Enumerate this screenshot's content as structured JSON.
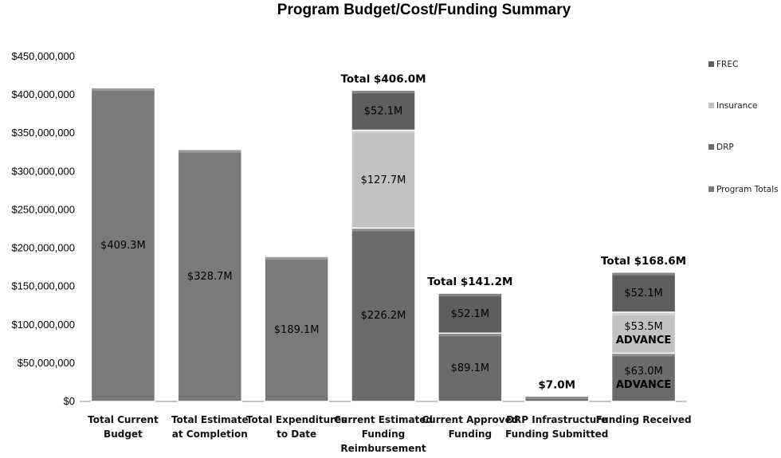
{
  "chart_data": {
    "type": "bar",
    "stacked": true,
    "title": "Program Budget/Cost/Funding Summary",
    "xlabel": "",
    "ylabel": "",
    "ylim": [
      0,
      450000000
    ],
    "ytick_values": [
      0,
      50000000,
      100000000,
      150000000,
      200000000,
      250000000,
      300000000,
      350000000,
      400000000,
      450000000
    ],
    "ytick_labels": [
      "$0",
      "$50,000,000",
      "$100,000,000",
      "$150,000,000",
      "$200,000,000",
      "$250,000,000",
      "$300,000,000",
      "$350,000,000",
      "$400,000,000",
      "$450,000,000"
    ],
    "legend_position": "right",
    "colors": {
      "Program Totals": "#7a7a7a",
      "DRP": "#6b6b6b",
      "Insurance": "#c2c2c2",
      "FREC": "#5e5e5e"
    },
    "categories": [
      [
        "Total Current",
        "Budget"
      ],
      [
        "Total Estimate",
        "at Completion"
      ],
      [
        "Total Expenditures",
        "to Date"
      ],
      [
        "Current Estimated",
        "Funding",
        "Reimbursement"
      ],
      [
        "Current Approved",
        "Funding"
      ],
      [
        "DRP Infrastructure",
        "Funding Submitted"
      ],
      [
        "Funding Received"
      ]
    ],
    "series": [
      {
        "name": "Program Totals",
        "values": [
          409300000,
          328700000,
          189100000,
          0,
          0,
          0,
          0
        ],
        "labels": [
          "$409.3M",
          "$328.7M",
          "$189.1M",
          "",
          "",
          "",
          ""
        ]
      },
      {
        "name": "DRP",
        "values": [
          0,
          0,
          0,
          226200000,
          89100000,
          7000000,
          63000000
        ],
        "labels": [
          "",
          "",
          "",
          "$226.2M",
          "$89.1M",
          "",
          "$63.0M ADVANCE"
        ]
      },
      {
        "name": "Insurance",
        "values": [
          0,
          0,
          0,
          127700000,
          0,
          0,
          53500000
        ],
        "labels": [
          "",
          "",
          "",
          "$127.7M",
          "",
          "",
          "$53.5M ADVANCE"
        ]
      },
      {
        "name": "FREC",
        "values": [
          0,
          0,
          0,
          52100000,
          52100000,
          0,
          52100000
        ],
        "labels": [
          "",
          "",
          "",
          "$52.1M",
          "$52.1M",
          "",
          "$52.1M"
        ]
      }
    ],
    "legend_order": [
      "FREC",
      "Insurance",
      "DRP",
      "Program Totals"
    ],
    "totals": [
      "",
      "",
      "",
      "Total $406.0M",
      "Total $141.2M",
      "$7.0M",
      "Total $168.6M"
    ]
  }
}
